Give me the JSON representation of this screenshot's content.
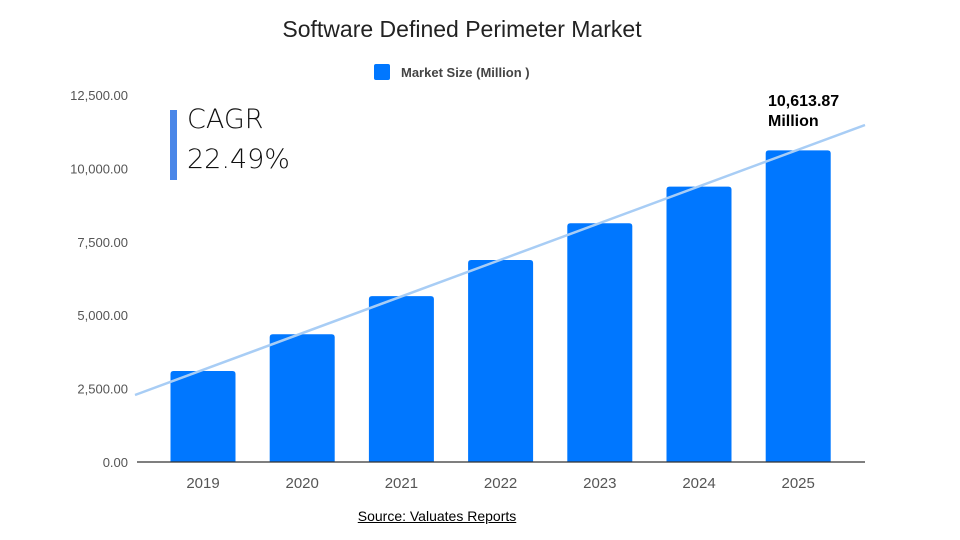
{
  "chart_data": {
    "type": "bar",
    "title": "Software Defined Perimeter Market",
    "categories": [
      "2019",
      "2020",
      "2021",
      "2022",
      "2023",
      "2024",
      "2025"
    ],
    "series": [
      {
        "name": "Market Size (Million )",
        "values": [
          3100,
          4350,
          5650,
          6880,
          8130,
          9380,
          10613.87
        ],
        "color": "#0077ff"
      }
    ],
    "yticks": [
      "0.00",
      "2,500.00",
      "5,000.00",
      "7,500.00",
      "10,000.00",
      "12,500.00"
    ],
    "ylim": [
      0,
      12500
    ],
    "grid": false,
    "legend": "top-center",
    "trendline": {
      "color": "#a8cdf5"
    },
    "annotations": {
      "cagr_label": "CAGR",
      "cagr_value": "22.49%",
      "last_value_line1": "10,613.87",
      "last_value_line2": "Million"
    },
    "source": "Source: Valuates Reports"
  }
}
